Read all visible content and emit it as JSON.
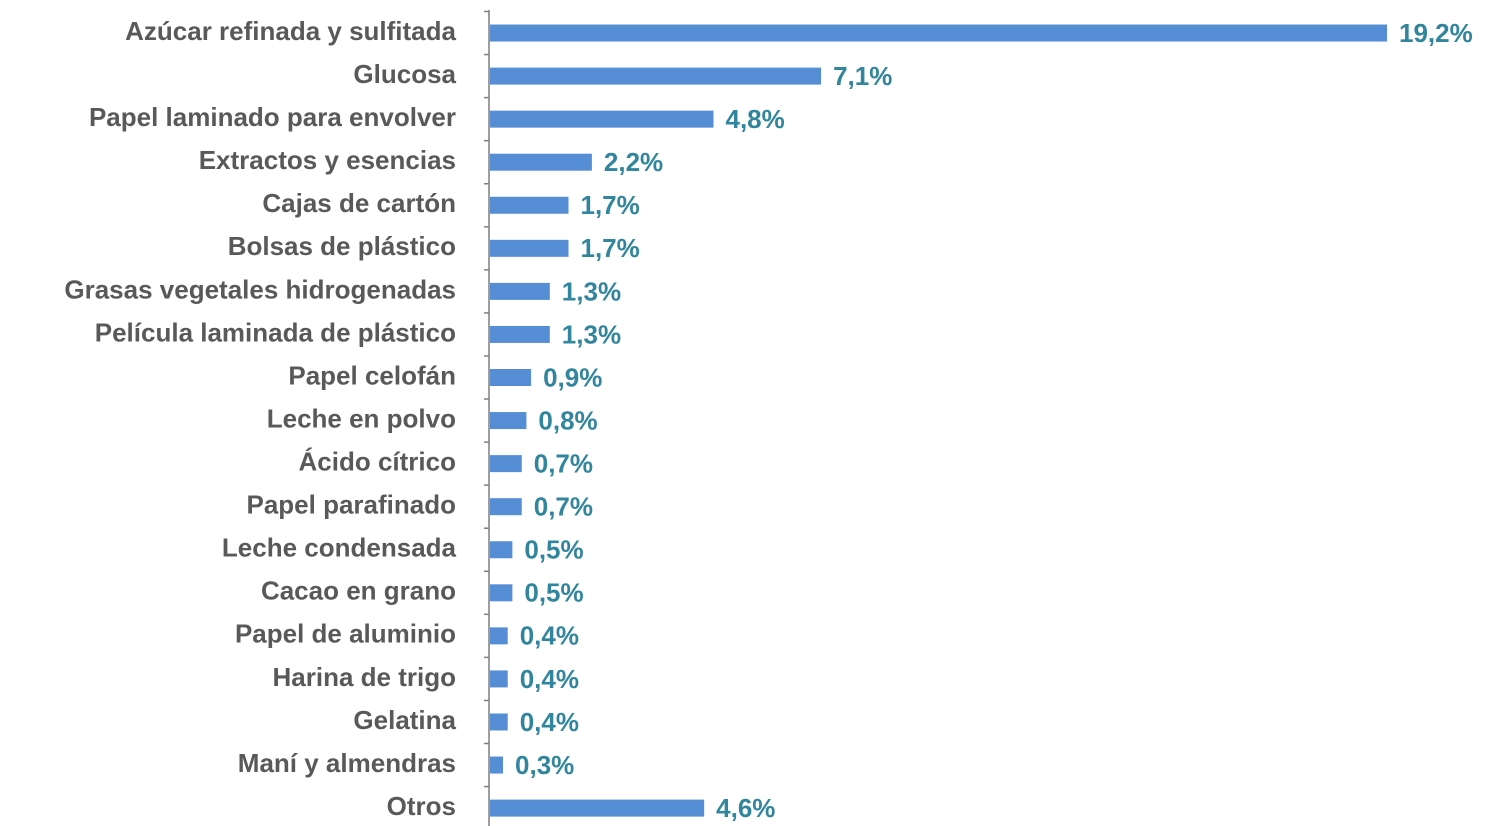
{
  "chart_data": {
    "type": "barh",
    "categories": [
      "Azúcar refinada y sulfitada",
      "Glucosa",
      "Papel laminado para envolver",
      "Extractos y esencias",
      "Cajas de cartón",
      "Bolsas de plástico",
      "Grasas vegetales hidrogenadas",
      "Película laminada de plástico",
      "Papel celofán",
      "Leche en polvo",
      "Ácido cítrico",
      "Papel parafinado",
      "Leche condensada",
      "Cacao en grano",
      "Papel de aluminio",
      "Harina de trigo",
      "Gelatina",
      "Maní y almendras",
      "Otros"
    ],
    "values": [
      19.2,
      7.1,
      4.8,
      2.2,
      1.7,
      1.7,
      1.3,
      1.3,
      0.9,
      0.8,
      0.7,
      0.7,
      0.5,
      0.5,
      0.4,
      0.4,
      0.4,
      0.3,
      4.6
    ],
    "value_labels": [
      "19,2%",
      "7,1%",
      "4,8%",
      "2,2%",
      "1,7%",
      "1,7%",
      "1,3%",
      "1,3%",
      "0,9%",
      "0,8%",
      "0,7%",
      "0,7%",
      "0,5%",
      "0,5%",
      "0,4%",
      "0,4%",
      "0,4%",
      "0,3%",
      "4,6%"
    ],
    "color": "#558ed5"
  }
}
